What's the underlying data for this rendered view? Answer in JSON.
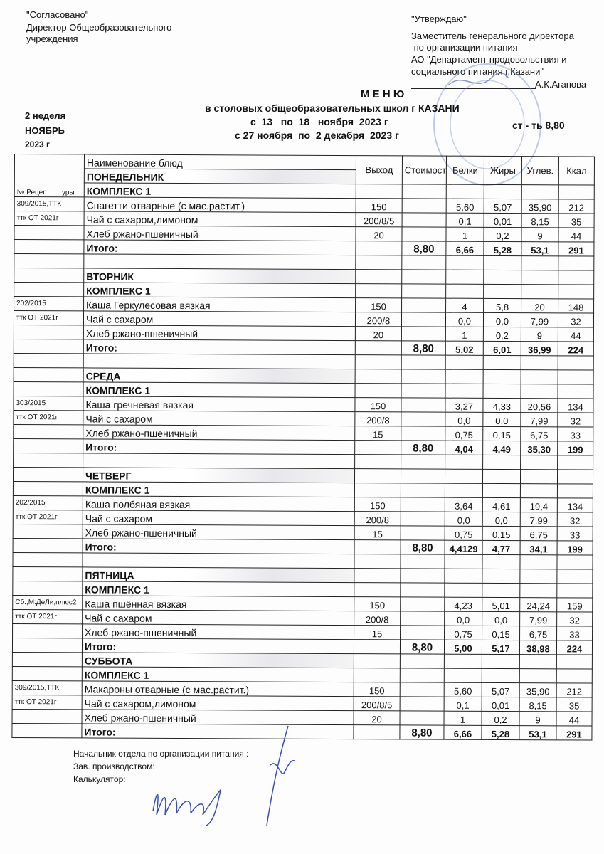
{
  "header": {
    "agreed": "\"Согласовано\"",
    "agreed_title": [
      "Директор Общеобразовательного",
      "учреждения"
    ],
    "approve": "\"Утверждаю\"",
    "approve_title": [
      "Заместитель генерального директора",
      " по организации питания",
      "АО \"Департамент продовольствия и",
      "социального питания г.Казани\""
    ],
    "approver_name": "А.К.Агапова",
    "title": "М Е Н Ю",
    "subtitle": "в столовых общеобразовательных школ г КАЗАНИ",
    "period1": "с  13   по  18   ноября  2023 г",
    "period2": "с 27 ноября  по  2 декабря  2023 г",
    "week": "2 неделя",
    "month": "НОЯБРЬ",
    "year": "2023 г",
    "cost_note": "ст - ть 8,80"
  },
  "table": {
    "columns": {
      "recipe": "№ Рецеп      туры",
      "name": "Наименование блюд",
      "yield": "Выход",
      "cost": "Стоимост",
      "protein": "Белки",
      "fat": "Жиры",
      "carbs": "Углев.",
      "kcal": "Ккал"
    },
    "total_label": "Итого:",
    "days": [
      {
        "day": "ПОНЕДЕЛЬНИК",
        "complex": "КОМПЛЕКС 1",
        "items": [
          {
            "recipe": "309/2015,ТТК",
            "name": "Спагетти отварные (с мас.растит.)",
            "yield": "150",
            "protein": "5,60",
            "fat": "5,07",
            "carbs": "35,90",
            "kcal": "212"
          },
          {
            "recipe": "ттк ОТ 2021г",
            "name": "Чай с сахаром,лимоном",
            "yield": "200/8/5",
            "protein": "0,1",
            "fat": "0,01",
            "carbs": "8,15",
            "kcal": "35"
          },
          {
            "recipe": "",
            "name": "Хлеб ржано-пшеничный",
            "yield": "20",
            "protein": "1",
            "fat": "0,2",
            "carbs": "9",
            "kcal": "44"
          }
        ],
        "total": {
          "cost": "8,80",
          "protein": "6,66",
          "fat": "5,28",
          "carbs": "53,1",
          "kcal": "291"
        }
      },
      {
        "day": "ВТОРНИК",
        "complex": "КОМПЛЕКС 1",
        "items": [
          {
            "recipe": "202/2015",
            "name": "Каша  Геркулесовая вязкая",
            "yield": "150",
            "protein": "4",
            "fat": "5,8",
            "carbs": "20",
            "kcal": "148"
          },
          {
            "recipe": "ттк ОТ 2021г",
            "name": "Чай с сахаром",
            "yield": "200/8",
            "protein": "0,0",
            "fat": "0,0",
            "carbs": "7,99",
            "kcal": "32"
          },
          {
            "recipe": "",
            "name": "Хлеб ржано-пшеничный",
            "yield": "20",
            "protein": "1",
            "fat": "0,2",
            "carbs": "9",
            "kcal": "44"
          }
        ],
        "total": {
          "cost": "8,80",
          "protein": "5,02",
          "fat": "6,01",
          "carbs": "36,99",
          "kcal": "224"
        }
      },
      {
        "day": "СРЕДА",
        "complex": "КОМПЛЕКС 1",
        "items": [
          {
            "recipe": "303/2015",
            "name": "Каша гречневая вязкая",
            "yield": "150",
            "protein": "3,27",
            "fat": "4,33",
            "carbs": "20,56",
            "kcal": "134"
          },
          {
            "recipe": "ттк ОТ 2021г",
            "name": "Чай с сахаром",
            "yield": "200/8",
            "protein": "0,0",
            "fat": "0,0",
            "carbs": "7,99",
            "kcal": "32"
          },
          {
            "recipe": "",
            "name": "Хлеб ржано-пшеничный",
            "yield": "15",
            "protein": "0,75",
            "fat": "0,15",
            "carbs": "6,75",
            "kcal": "33"
          }
        ],
        "total": {
          "cost": "8,80",
          "protein": "4,04",
          "fat": "4,49",
          "carbs": "35,30",
          "kcal": "199"
        }
      },
      {
        "day": "ЧЕТВЕРГ",
        "complex": "КОМПЛЕКС 1",
        "items": [
          {
            "recipe": "202/2015",
            "name": "Каша  полбяная вязкая",
            "yield": "150",
            "protein": "3,64",
            "fat": "4,61",
            "carbs": "19,4",
            "kcal": "134"
          },
          {
            "recipe": "ттк ОТ 2021г",
            "name": "Чай с сахаром",
            "yield": "200/8",
            "protein": "0,0",
            "fat": "0,0",
            "carbs": "7,99",
            "kcal": "32"
          },
          {
            "recipe": "",
            "name": "Хлеб ржано-пшеничный",
            "yield": "15",
            "protein": "0,75",
            "fat": "0,15",
            "carbs": "6,75",
            "kcal": "33"
          }
        ],
        "total": {
          "cost": "8,80",
          "protein": "4,4129",
          "fat": "4,77",
          "carbs": "34,1",
          "kcal": "199"
        }
      },
      {
        "day": "ПЯТНИЦА",
        "complex": "КОМПЛЕКС 1",
        "items": [
          {
            "recipe": "Сб.,М:ДеЛи,плюс2",
            "name": "Каша пшённая вязкая",
            "yield": "150",
            "protein": "4,23",
            "fat": "5,01",
            "carbs": "24,24",
            "kcal": "159"
          },
          {
            "recipe": "ттк ОТ 2021г",
            "name": "Чай с сахаром",
            "yield": "200/8",
            "protein": "0,0",
            "fat": "0,0",
            "carbs": "7,99",
            "kcal": "32"
          },
          {
            "recipe": "",
            "name": "Хлеб ржано-пшеничный",
            "yield": "15",
            "protein": "0,75",
            "fat": "0,15",
            "carbs": "6,75",
            "kcal": "33"
          }
        ],
        "total": {
          "cost": "8,80",
          "protein": "5,00",
          "fat": "5,17",
          "carbs": "38,98",
          "kcal": "224"
        }
      },
      {
        "day": "СУББОТА",
        "complex": "КОМПЛЕКС 1",
        "items": [
          {
            "recipe": "309/2015,ТТК",
            "name": "Макароны отварные (с мас.растит.)",
            "yield": "150",
            "protein": "5,60",
            "fat": "5,07",
            "carbs": "35,90",
            "kcal": "212"
          },
          {
            "recipe": "ттк ОТ 2021г",
            "name": "Чай с сахаром,лимоном",
            "yield": "200/8/5",
            "protein": "0,1",
            "fat": "0,01",
            "carbs": "8,15",
            "kcal": "35"
          },
          {
            "recipe": "",
            "name": "Хлеб ржано-пшеничный",
            "yield": "20",
            "protein": "1",
            "fat": "0,2",
            "carbs": "9",
            "kcal": "44"
          }
        ],
        "total": {
          "cost": "8,80",
          "protein": "6,66",
          "fat": "5,28",
          "carbs": "53,1",
          "kcal": "291"
        }
      }
    ]
  },
  "footer": {
    "head": "Начальник отдела по организации питания :",
    "production": "Зав. производством:",
    "calculator": "Калькулятор:"
  },
  "colors": {
    "stamp": "#6f8fd0",
    "signature": "#3a4fb0"
  }
}
